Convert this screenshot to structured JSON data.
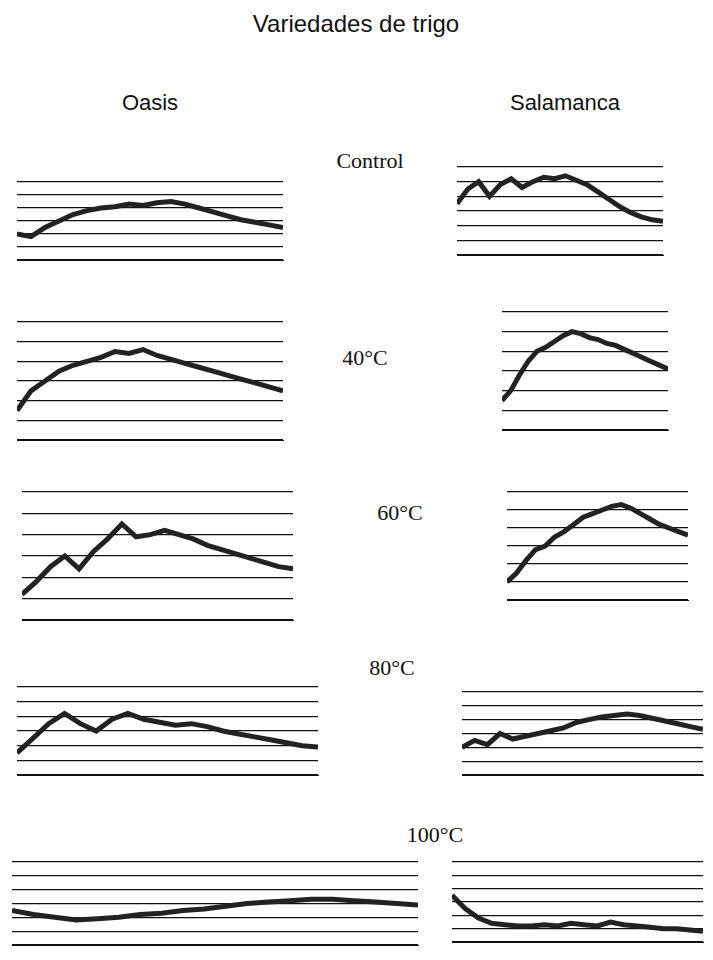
{
  "figure": {
    "title": "Variedades de trigo",
    "columns": [
      "Oasis",
      "Salamanca"
    ],
    "rows": [
      "Control",
      "40°C",
      "60°C",
      "80°C",
      "100°C"
    ]
  },
  "chart_data": [
    {
      "type": "line",
      "x": [
        0,
        1,
        2,
        3,
        4,
        5,
        6,
        7,
        8,
        9,
        10,
        11,
        12,
        13,
        14,
        15,
        16,
        17,
        18,
        19
      ],
      "values": [
        2.0,
        1.8,
        2.5,
        3.0,
        3.5,
        3.8,
        4.0,
        4.1,
        4.3,
        4.2,
        4.4,
        4.5,
        4.3,
        4.0,
        3.7,
        3.4,
        3.1,
        2.9,
        2.7,
        2.5
      ],
      "color": "#222222",
      "xlim": [
        0,
        19
      ],
      "ylim": [
        0,
        6
      ],
      "yticks": [
        0,
        1,
        2,
        3,
        4,
        5,
        6
      ],
      "grid": "y",
      "tick_labels": false
    },
    {
      "type": "line",
      "x": [
        0,
        1,
        2,
        3,
        4,
        5,
        6,
        7,
        8,
        9,
        10,
        11,
        12,
        13,
        14,
        15,
        16,
        17,
        18,
        19
      ],
      "values": [
        3.5,
        4.5,
        5.0,
        4.0,
        4.8,
        5.2,
        4.6,
        5.0,
        5.3,
        5.2,
        5.4,
        5.1,
        4.8,
        4.3,
        3.8,
        3.3,
        2.9,
        2.6,
        2.4,
        2.3
      ],
      "color": "#222222",
      "xlim": [
        0,
        19
      ],
      "ylim": [
        0,
        6
      ],
      "yticks": [
        0,
        1,
        2,
        3,
        4,
        5,
        6
      ],
      "grid": "y",
      "tick_labels": false
    },
    {
      "type": "line",
      "x": [
        0,
        1,
        2,
        3,
        4,
        5,
        6,
        7,
        8,
        9,
        10,
        11,
        12,
        13,
        14,
        15,
        16,
        17,
        18,
        19
      ],
      "values": [
        1.5,
        2.5,
        3.0,
        3.5,
        3.8,
        4.0,
        4.2,
        4.5,
        4.4,
        4.6,
        4.3,
        4.1,
        3.9,
        3.7,
        3.5,
        3.3,
        3.1,
        2.9,
        2.7,
        2.5
      ],
      "color": "#222222",
      "xlim": [
        0,
        19
      ],
      "ylim": [
        0,
        6
      ],
      "yticks": [
        0,
        1,
        2,
        3,
        4,
        5,
        6
      ],
      "grid": "y",
      "tick_labels": false
    },
    {
      "type": "line",
      "x": [
        0,
        1,
        2,
        3,
        4,
        5,
        6,
        7,
        8,
        9,
        10,
        11,
        12,
        13,
        14,
        15,
        16,
        17,
        18,
        19
      ],
      "values": [
        1.5,
        2.0,
        2.8,
        3.5,
        4.0,
        4.2,
        4.5,
        4.8,
        5.0,
        4.9,
        4.7,
        4.6,
        4.4,
        4.3,
        4.1,
        3.9,
        3.7,
        3.5,
        3.3,
        3.1
      ],
      "color": "#222222",
      "xlim": [
        0,
        19
      ],
      "ylim": [
        0,
        6
      ],
      "yticks": [
        0,
        1,
        2,
        3,
        4,
        5,
        6
      ],
      "grid": "y",
      "tick_labels": false
    },
    {
      "type": "line",
      "x": [
        0,
        1,
        2,
        3,
        4,
        5,
        6,
        7,
        8,
        9,
        10,
        11,
        12,
        13,
        14,
        15,
        16,
        17,
        18,
        19
      ],
      "values": [
        1.2,
        1.8,
        2.5,
        3.0,
        2.4,
        3.2,
        3.8,
        4.5,
        3.9,
        4.0,
        4.2,
        4.0,
        3.8,
        3.5,
        3.3,
        3.1,
        2.9,
        2.7,
        2.5,
        2.4
      ],
      "color": "#222222",
      "xlim": [
        0,
        19
      ],
      "ylim": [
        0,
        6
      ],
      "yticks": [
        0,
        1,
        2,
        3,
        4,
        5,
        6
      ],
      "grid": "y",
      "tick_labels": false
    },
    {
      "type": "line",
      "x": [
        0,
        1,
        2,
        3,
        4,
        5,
        6,
        7,
        8,
        9,
        10,
        11,
        12,
        13,
        14,
        15,
        16,
        17,
        18,
        19
      ],
      "values": [
        1.0,
        1.5,
        2.2,
        2.8,
        3.0,
        3.5,
        3.8,
        4.2,
        4.6,
        4.8,
        5.0,
        5.2,
        5.3,
        5.1,
        4.8,
        4.5,
        4.2,
        4.0,
        3.8,
        3.6
      ],
      "color": "#222222",
      "xlim": [
        0,
        19
      ],
      "ylim": [
        0,
        6
      ],
      "yticks": [
        0,
        1,
        2,
        3,
        4,
        5,
        6
      ],
      "grid": "y",
      "tick_labels": false
    },
    {
      "type": "line",
      "x": [
        0,
        1,
        2,
        3,
        4,
        5,
        6,
        7,
        8,
        9,
        10,
        11,
        12,
        13,
        14,
        15,
        16,
        17,
        18,
        19
      ],
      "values": [
        1.5,
        2.5,
        3.5,
        4.2,
        3.5,
        3.0,
        3.8,
        4.2,
        3.8,
        3.6,
        3.4,
        3.5,
        3.3,
        3.0,
        2.8,
        2.6,
        2.4,
        2.2,
        2.0,
        1.9
      ],
      "color": "#222222",
      "xlim": [
        0,
        19
      ],
      "ylim": [
        0,
        6
      ],
      "yticks": [
        0,
        1,
        2,
        3,
        4,
        5,
        6
      ],
      "grid": "y",
      "tick_labels": false
    },
    {
      "type": "line",
      "x": [
        0,
        1,
        2,
        3,
        4,
        5,
        6,
        7,
        8,
        9,
        10,
        11,
        12,
        13,
        14,
        15,
        16,
        17,
        18,
        19
      ],
      "values": [
        2.0,
        2.5,
        2.2,
        3.0,
        2.6,
        2.8,
        3.0,
        3.2,
        3.4,
        3.8,
        4.0,
        4.2,
        4.3,
        4.4,
        4.3,
        4.1,
        3.9,
        3.7,
        3.5,
        3.3
      ],
      "color": "#222222",
      "xlim": [
        0,
        19
      ],
      "ylim": [
        0,
        6
      ],
      "yticks": [
        0,
        1,
        2,
        3,
        4,
        5,
        6
      ],
      "grid": "y",
      "tick_labels": false
    },
    {
      "type": "line",
      "x": [
        0,
        1,
        2,
        3,
        4,
        5,
        6,
        7,
        8,
        9,
        10,
        11,
        12,
        13,
        14,
        15,
        16,
        17,
        18,
        19
      ],
      "values": [
        2.5,
        2.2,
        2.0,
        1.8,
        1.9,
        2.0,
        2.2,
        2.3,
        2.5,
        2.6,
        2.8,
        3.0,
        3.1,
        3.2,
        3.3,
        3.3,
        3.2,
        3.1,
        3.0,
        2.9
      ],
      "color": "#222222",
      "xlim": [
        0,
        19
      ],
      "ylim": [
        0,
        6
      ],
      "yticks": [
        0,
        1,
        2,
        3,
        4,
        5,
        6
      ],
      "grid": "y",
      "tick_labels": false
    },
    {
      "type": "line",
      "x": [
        0,
        1,
        2,
        3,
        4,
        5,
        6,
        7,
        8,
        9,
        10,
        11,
        12,
        13,
        14,
        15,
        16,
        17,
        18,
        19
      ],
      "values": [
        3.5,
        2.5,
        1.8,
        1.4,
        1.3,
        1.2,
        1.2,
        1.3,
        1.2,
        1.4,
        1.3,
        1.2,
        1.5,
        1.3,
        1.2,
        1.1,
        1.0,
        1.0,
        0.9,
        0.8
      ],
      "color": "#222222",
      "xlim": [
        0,
        19
      ],
      "ylim": [
        0,
        6
      ],
      "yticks": [
        0,
        1,
        2,
        3,
        4,
        5,
        6
      ],
      "grid": "y",
      "tick_labels": false
    }
  ]
}
